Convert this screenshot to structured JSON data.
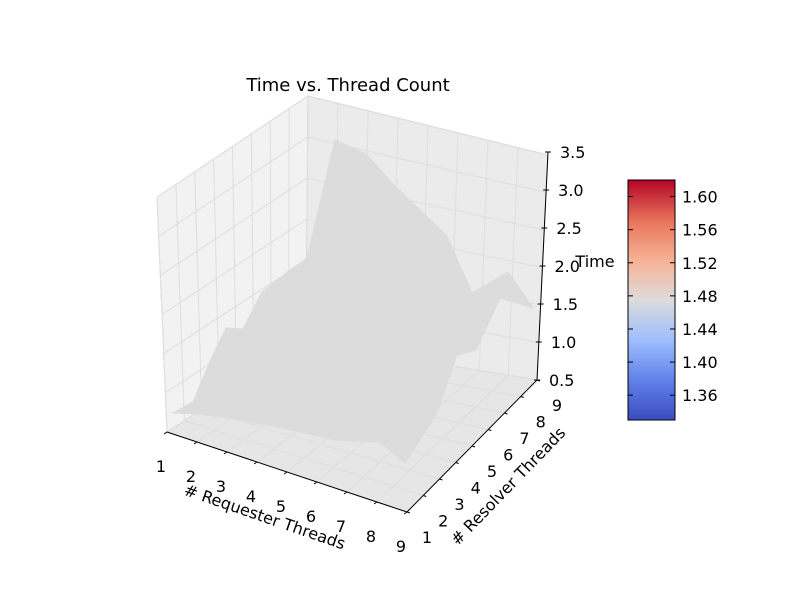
{
  "chart_data": {
    "type": "surface3d",
    "title": "Time vs. Thread Count",
    "xlabel": "# Requester Threads",
    "ylabel": "# Resolver Threads",
    "zlabel": "Time",
    "x_ticks": [
      "1",
      "2",
      "3",
      "4",
      "5",
      "6",
      "7",
      "8",
      "9"
    ],
    "y_ticks": [
      "1",
      "2",
      "3",
      "4",
      "5",
      "6",
      "7",
      "8",
      "9"
    ],
    "z_ticks": [
      "0.5",
      "1.0",
      "1.5",
      "2.0",
      "2.5",
      "3.0",
      "3.5"
    ],
    "x_range": [
      1,
      9
    ],
    "y_range": [
      1,
      9
    ],
    "zlim": [
      0.5,
      3.5
    ],
    "surface_color": "#dcdcdc",
    "pane_color": "#f2f2f2",
    "grid": true,
    "colorbar": {
      "ticks": [
        "1.36",
        "1.40",
        "1.44",
        "1.48",
        "1.52",
        "1.56",
        "1.60"
      ],
      "range": [
        1.33,
        1.62
      ],
      "colormap": "coolwarm"
    }
  }
}
